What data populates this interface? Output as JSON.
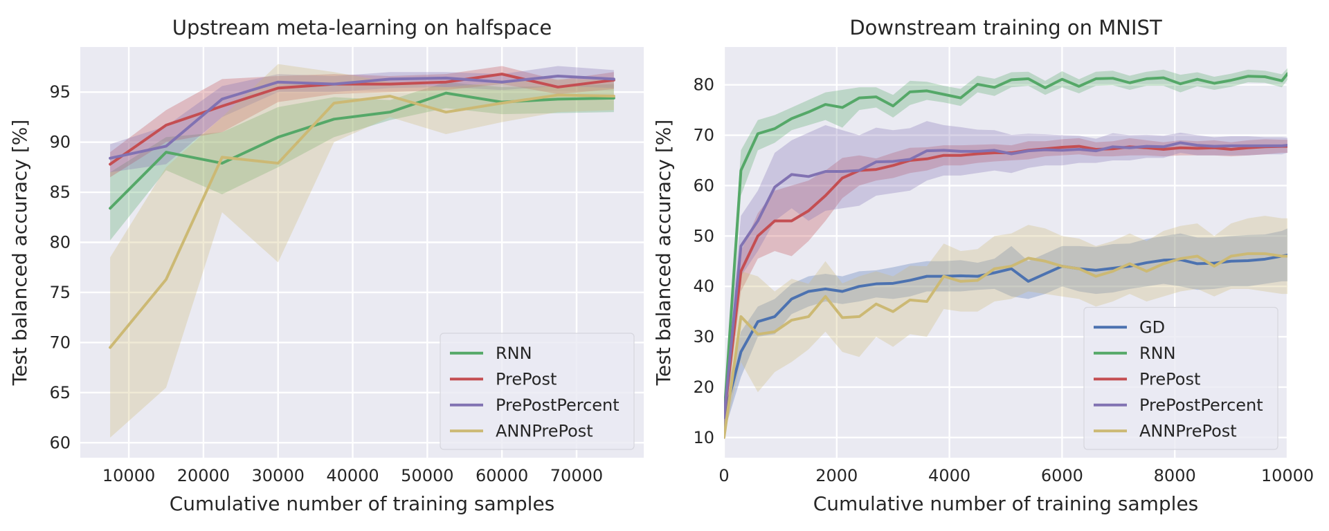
{
  "chart_data": [
    {
      "type": "line",
      "title": "Upstream meta-learning on halfspace",
      "xlabel": "Cumulative number of training samples",
      "ylabel": "Test balanced accuracy [%]",
      "xlim": [
        3500,
        79000
      ],
      "ylim": [
        58.5,
        99.5
      ],
      "xticks": [
        10000,
        20000,
        30000,
        40000,
        50000,
        60000,
        70000
      ],
      "yticks": [
        60,
        65,
        70,
        75,
        80,
        85,
        90,
        95
      ],
      "legend_position": "lower-right",
      "x": [
        7500,
        15000,
        22500,
        30000,
        37500,
        45000,
        52500,
        60000,
        67500,
        75000
      ],
      "series": [
        {
          "name": "RNN",
          "color": "#55a868",
          "values": [
            83.4,
            89.0,
            87.9,
            90.5,
            92.3,
            93.0,
            94.9,
            94.0,
            94.3,
            94.4
          ],
          "lower": [
            80.2,
            87.2,
            84.8,
            87.5,
            90.5,
            92.2,
            93.4,
            92.8,
            92.9,
            93.0
          ],
          "upper": [
            87.0,
            90.5,
            91.0,
            93.5,
            94.5,
            94.2,
            96.0,
            95.5,
            95.6,
            95.8
          ]
        },
        {
          "name": "PrePost",
          "color": "#c44e52",
          "values": [
            87.8,
            91.7,
            93.6,
            95.4,
            95.8,
            95.8,
            96.0,
            96.8,
            95.5,
            96.2
          ],
          "lower": [
            86.5,
            90.0,
            91.0,
            94.0,
            94.8,
            95.0,
            95.2,
            95.8,
            94.8,
            95.3
          ],
          "upper": [
            89.0,
            93.2,
            96.3,
            96.6,
            96.8,
            96.6,
            96.8,
            97.6,
            96.2,
            97.0
          ]
        },
        {
          "name": "PrePostPercent",
          "color": "#8172b2",
          "values": [
            88.4,
            89.6,
            94.3,
            96.0,
            95.8,
            96.3,
            96.4,
            96.0,
            96.6,
            96.3
          ],
          "lower": [
            87.0,
            87.8,
            92.5,
            95.0,
            95.0,
            95.4,
            95.5,
            95.2,
            95.6,
            95.4
          ],
          "upper": [
            89.8,
            91.6,
            95.6,
            96.8,
            96.6,
            97.0,
            97.0,
            96.8,
            97.6,
            97.2
          ]
        },
        {
          "name": "ANNPrePost",
          "color": "#ccb974",
          "values": [
            69.5,
            76.3,
            88.5,
            87.9,
            93.9,
            94.6,
            93.0,
            93.9,
            94.7,
            94.6
          ],
          "lower": [
            60.5,
            65.5,
            83.0,
            78.0,
            90.0,
            92.5,
            90.8,
            92.0,
            93.0,
            93.2
          ],
          "upper": [
            78.5,
            87.5,
            92.5,
            97.8,
            97.0,
            96.0,
            95.5,
            96.0,
            96.3,
            96.2
          ]
        }
      ]
    },
    {
      "type": "line",
      "title": "Downstream training on MNIST",
      "xlabel": "Cumulative number of training samples",
      "ylabel": "Test balanced accuracy [%]",
      "xlim": [
        0,
        10000
      ],
      "ylim": [
        6,
        87.5
      ],
      "xticks": [
        0,
        2000,
        4000,
        6000,
        8000,
        10000
      ],
      "yticks": [
        10,
        20,
        30,
        40,
        50,
        60,
        70,
        80
      ],
      "legend_position": "lower-right",
      "x": [
        0,
        300,
        600,
        900,
        1200,
        1500,
        1800,
        2100,
        2400,
        2700,
        3000,
        3300,
        3600,
        3900,
        4200,
        4500,
        4800,
        5100,
        5400,
        5700,
        6000,
        6300,
        6600,
        6900,
        7200,
        7500,
        7800,
        8100,
        8400,
        8700,
        9000,
        9300,
        9600,
        9900,
        10000
      ],
      "series": [
        {
          "name": "GD",
          "color": "#4c72b0",
          "values": [
            14.0,
            27.0,
            33.0,
            34.0,
            37.5,
            39.0,
            39.5,
            39.0,
            40.0,
            40.5,
            40.6,
            41.2,
            42.0,
            42.0,
            42.1,
            42.0,
            42.7,
            43.5,
            41.0,
            42.5,
            44.0,
            43.5,
            43.2,
            43.6,
            44.0,
            44.7,
            45.2,
            45.3,
            44.5,
            44.6,
            45.0,
            45.1,
            45.4,
            46.0,
            46.2
          ],
          "lower": [
            11.0,
            22.0,
            30.0,
            30.5,
            34.5,
            36.0,
            37.0,
            36.5,
            37.0,
            37.8,
            37.5,
            38.0,
            39.0,
            39.0,
            39.0,
            39.3,
            39.5,
            38.0,
            37.5,
            38.5,
            40.0,
            39.0,
            38.5,
            38.8,
            39.5,
            40.0,
            40.5,
            40.0,
            39.3,
            39.5,
            40.0,
            40.0,
            40.5,
            41.0,
            41.0
          ],
          "upper": [
            17.0,
            31.0,
            36.0,
            37.5,
            40.5,
            42.0,
            42.5,
            42.0,
            43.0,
            43.2,
            43.8,
            44.5,
            45.0,
            45.0,
            45.2,
            44.7,
            45.5,
            48.0,
            45.0,
            46.5,
            48.0,
            48.0,
            47.8,
            48.4,
            48.5,
            49.4,
            50.0,
            50.5,
            49.7,
            49.7,
            50.0,
            50.2,
            50.3,
            51.0,
            51.5
          ]
        },
        {
          "name": "RNN",
          "color": "#55a868",
          "values": [
            14.0,
            63.0,
            70.3,
            71.3,
            73.3,
            74.6,
            76.1,
            75.5,
            77.4,
            77.6,
            75.8,
            78.6,
            78.8,
            78.1,
            77.4,
            80.1,
            79.5,
            81.0,
            81.2,
            79.4,
            81.1,
            79.7,
            81.2,
            81.3,
            80.4,
            81.2,
            81.4,
            80.2,
            81.1,
            80.3,
            80.9,
            81.7,
            81.6,
            80.8,
            82.2
          ],
          "lower": [
            11.0,
            58.0,
            67.0,
            68.5,
            71.0,
            72.0,
            73.0,
            71.5,
            75.0,
            75.5,
            73.5,
            76.0,
            77.0,
            76.5,
            75.8,
            78.5,
            77.8,
            79.5,
            79.8,
            78.0,
            79.5,
            78.3,
            79.8,
            79.9,
            79.0,
            79.8,
            79.8,
            78.5,
            79.7,
            79.0,
            79.6,
            80.5,
            80.4,
            79.5,
            81.0
          ],
          "upper": [
            17.0,
            67.0,
            73.0,
            74.0,
            75.5,
            77.0,
            78.5,
            79.0,
            79.5,
            79.5,
            78.0,
            80.8,
            80.6,
            79.8,
            79.2,
            81.8,
            81.2,
            82.5,
            82.6,
            80.8,
            82.7,
            81.1,
            82.6,
            82.8,
            81.8,
            82.6,
            83.0,
            82.0,
            82.5,
            81.6,
            82.2,
            83.0,
            82.8,
            82.1,
            83.3
          ]
        },
        {
          "name": "PrePost",
          "color": "#c44e52",
          "values": [
            14.0,
            43.0,
            50.0,
            53.0,
            53.0,
            55.0,
            58.0,
            61.5,
            63.0,
            63.2,
            64.0,
            65.0,
            65.3,
            66.0,
            66.0,
            66.3,
            66.5,
            66.5,
            67.0,
            67.3,
            67.6,
            67.8,
            67.2,
            67.3,
            67.7,
            67.5,
            67.2,
            67.5,
            67.4,
            67.5,
            67.2,
            67.5,
            67.7,
            67.8,
            67.8
          ],
          "lower": [
            11.0,
            39.0,
            45.5,
            47.0,
            46.0,
            49.0,
            53.0,
            57.5,
            60.0,
            61.0,
            61.5,
            62.5,
            63.0,
            64.0,
            64.0,
            64.5,
            64.8,
            65.0,
            65.2,
            65.8,
            66.0,
            66.2,
            65.8,
            65.8,
            66.0,
            66.0,
            65.8,
            66.0,
            66.0,
            66.0,
            65.8,
            66.0,
            66.2,
            66.5,
            66.5
          ],
          "upper": [
            17.0,
            47.0,
            54.5,
            59.0,
            60.0,
            61.0,
            63.0,
            65.5,
            66.0,
            65.4,
            66.5,
            67.5,
            67.6,
            68.0,
            68.0,
            68.1,
            68.2,
            68.0,
            68.8,
            68.8,
            69.2,
            69.4,
            68.6,
            68.8,
            69.4,
            69.0,
            68.6,
            69.0,
            68.8,
            69.0,
            68.6,
            69.0,
            69.2,
            69.1,
            69.1
          ]
        },
        {
          "name": "PrePostPercent",
          "color": "#8172b2",
          "values": [
            14.0,
            48.0,
            53.0,
            59.7,
            62.2,
            61.8,
            62.8,
            62.8,
            63.0,
            64.7,
            64.8,
            65.2,
            66.9,
            67.0,
            66.8,
            66.8,
            67.0,
            66.3,
            66.9,
            67.1,
            67.0,
            67.2,
            66.9,
            67.7,
            67.5,
            67.8,
            67.7,
            68.5,
            68.0,
            67.8,
            67.9,
            67.9,
            67.9,
            67.9,
            68.0
          ],
          "lower": [
            11.0,
            42.0,
            47.0,
            53.0,
            55.5,
            53.0,
            55.0,
            55.5,
            56.0,
            58.0,
            58.5,
            59.0,
            61.0,
            62.0,
            62.0,
            62.5,
            63.0,
            62.5,
            63.5,
            64.0,
            64.0,
            64.5,
            64.5,
            65.0,
            65.0,
            65.5,
            65.5,
            66.5,
            66.0,
            66.0,
            66.0,
            66.0,
            66.2,
            66.2,
            66.5
          ],
          "upper": [
            17.0,
            54.0,
            59.0,
            66.5,
            69.0,
            70.5,
            72.0,
            71.0,
            70.0,
            71.5,
            71.0,
            71.4,
            72.8,
            72.0,
            71.6,
            71.1,
            71.0,
            70.1,
            70.3,
            70.2,
            70.0,
            69.9,
            69.3,
            70.4,
            70.0,
            70.1,
            69.9,
            70.5,
            70.0,
            69.6,
            69.8,
            69.8,
            69.6,
            69.6,
            69.5
          ]
        },
        {
          "name": "ANNPrePost",
          "color": "#ccb974",
          "values": [
            10.0,
            34.0,
            30.5,
            31.0,
            33.3,
            34.0,
            38.0,
            33.8,
            34.0,
            36.5,
            35.0,
            37.3,
            37.0,
            42.0,
            41.0,
            41.2,
            43.5,
            44.0,
            45.6,
            45.0,
            44.0,
            43.5,
            42.0,
            43.0,
            44.5,
            43.0,
            44.5,
            45.5,
            46.0,
            44.0,
            46.0,
            46.5,
            46.5,
            46.0,
            46.0
          ],
          "lower": [
            10.0,
            25.0,
            19.0,
            23.0,
            25.0,
            27.5,
            31.0,
            27.0,
            26.0,
            30.0,
            28.0,
            30.5,
            30.0,
            35.5,
            35.0,
            35.0,
            37.0,
            37.5,
            39.0,
            38.5,
            38.0,
            37.5,
            36.0,
            37.0,
            38.5,
            37.0,
            38.0,
            39.0,
            39.5,
            38.0,
            39.5,
            39.5,
            39.0,
            38.5,
            38.5
          ],
          "upper": [
            10.0,
            43.0,
            42.0,
            39.0,
            41.5,
            40.5,
            45.0,
            40.6,
            42.0,
            43.0,
            42.0,
            44.1,
            44.0,
            48.5,
            47.0,
            47.4,
            50.0,
            50.5,
            52.2,
            51.5,
            50.0,
            49.5,
            48.0,
            49.0,
            50.5,
            49.0,
            51.0,
            52.0,
            52.5,
            50.0,
            52.5,
            53.5,
            54.0,
            53.5,
            53.5
          ]
        }
      ]
    }
  ]
}
